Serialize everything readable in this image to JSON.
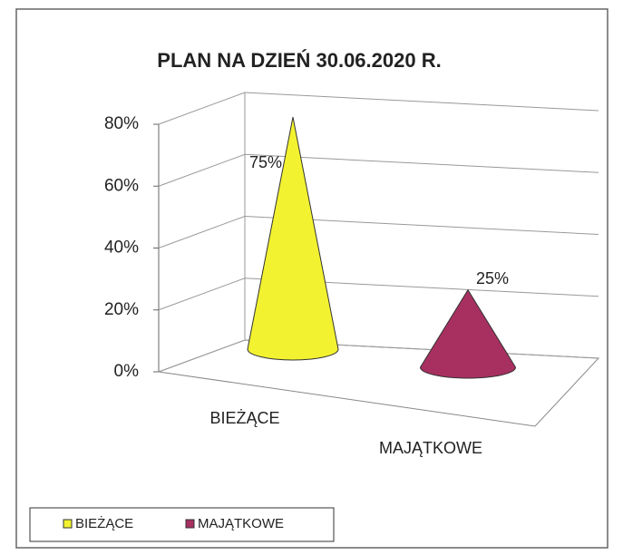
{
  "chart_data": {
    "type": "cone",
    "title": "PLAN NA DZIEŃ 30.06.2020 R.",
    "categories": [
      "BIEŻĄCE",
      "MAJĄTKOWE"
    ],
    "values": [
      75,
      25
    ],
    "value_labels": [
      "75%",
      "25%"
    ],
    "colors": [
      "#f2f230",
      "#a83060"
    ],
    "ylim": [
      0,
      80
    ],
    "yticks": [
      {
        "value": 0,
        "label": "0%"
      },
      {
        "value": 20,
        "label": "20%"
      },
      {
        "value": 40,
        "label": "40%"
      },
      {
        "value": 60,
        "label": "60%"
      },
      {
        "value": 80,
        "label": "80%"
      }
    ],
    "grid": true,
    "legend": "bottom-left"
  }
}
